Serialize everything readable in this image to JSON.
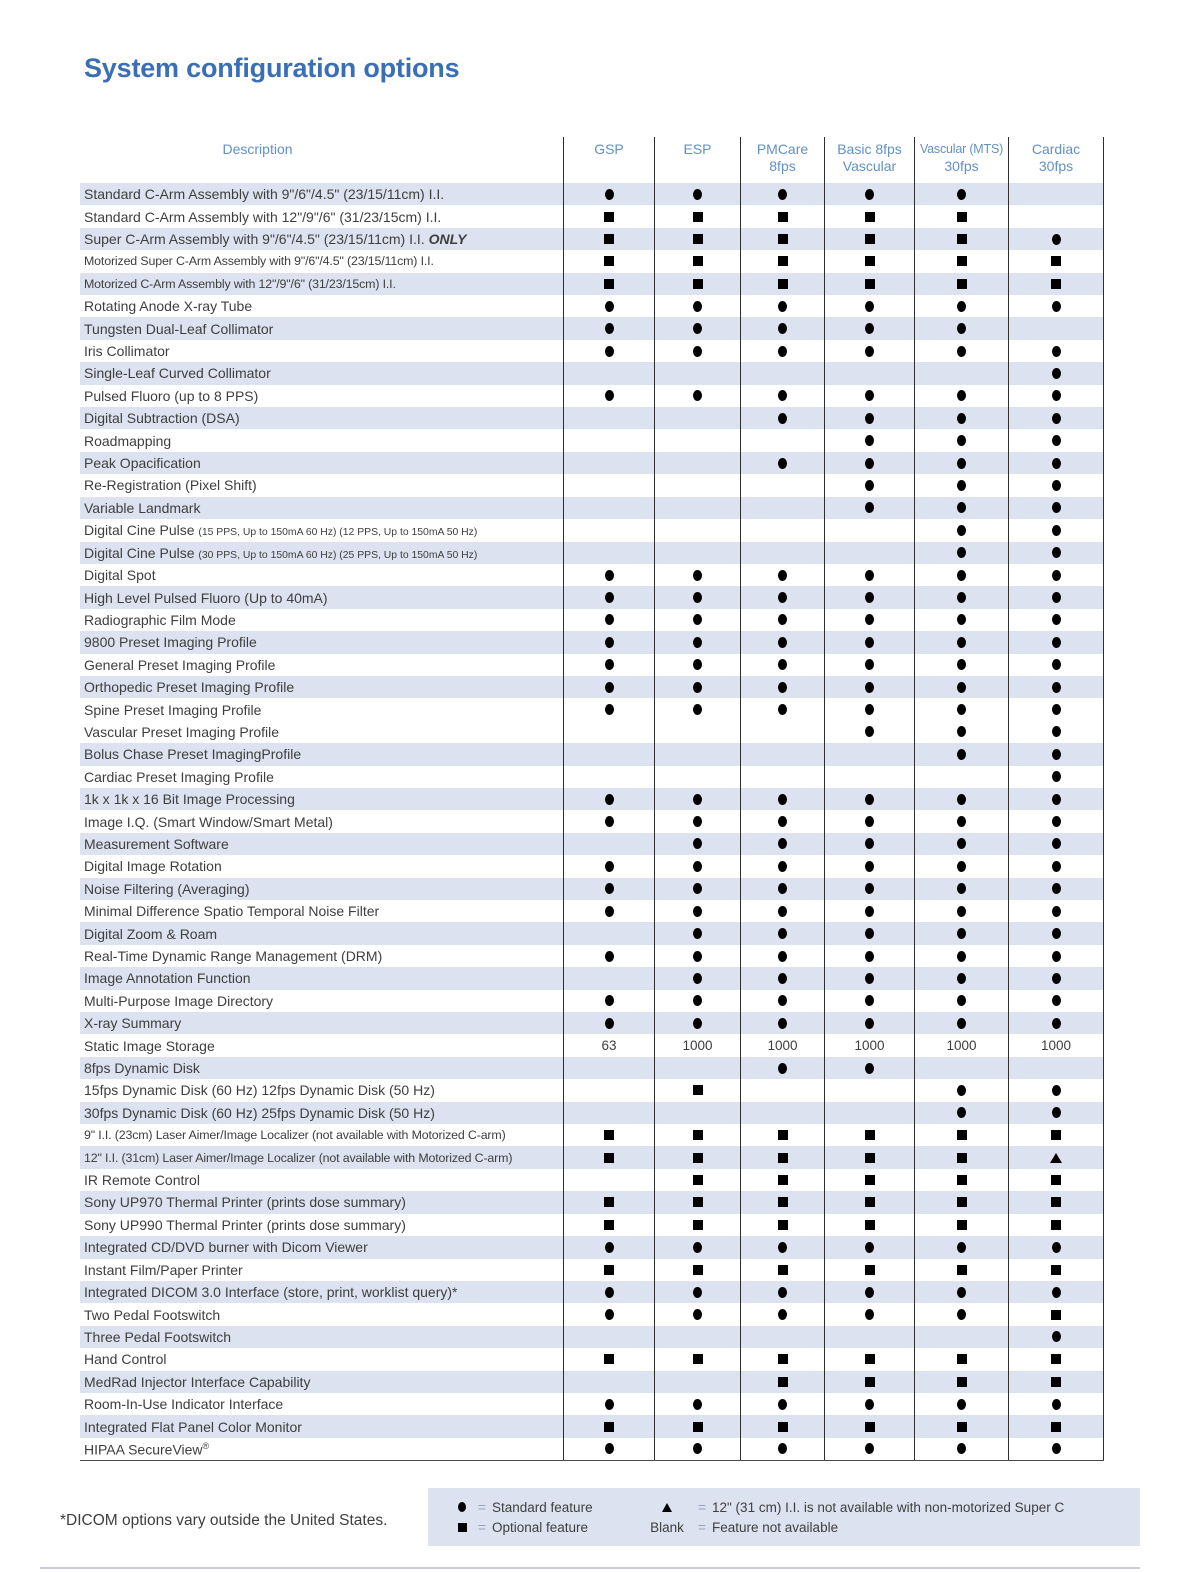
{
  "colors": {
    "accent": "#3a6fb6",
    "headerblue": "#6290c7",
    "textdark": "#3e3e3e",
    "stripe": "#dde2f0",
    "linedark": "#2e2e2e",
    "eqgray": "#97a2ba",
    "rule": "#c9cdd9"
  },
  "page": {
    "title": "System configuration options",
    "footnote": "*DICOM options vary outside the United States."
  },
  "table": {
    "description_header": "Description",
    "columns": [
      {
        "lines": [
          "GSP"
        ]
      },
      {
        "lines": [
          "ESP"
        ]
      },
      {
        "lines": [
          "PMCare",
          "8fps"
        ]
      },
      {
        "lines": [
          "Basic 8fps",
          "Vascular"
        ]
      },
      {
        "lines": [
          "Vascular (MTS)",
          "30fps"
        ],
        "small": true
      },
      {
        "lines": [
          "Cardiac",
          "30fps"
        ]
      }
    ],
    "rows": [
      {
        "desc": "Standard C-Arm Assembly with 9\"/6\"/4.5\" (23/15/11cm) I.I.",
        "cells": [
          "dot",
          "dot",
          "dot",
          "dot",
          "dot",
          ""
        ]
      },
      {
        "desc": "Standard C-Arm Assembly with 12\"/9\"/6\" (31/23/15cm) I.I.",
        "cells": [
          "square",
          "square",
          "square",
          "square",
          "square",
          ""
        ]
      },
      {
        "desc": "Super C-Arm Assembly with 9\"/6\"/4.5\" (23/15/11cm) I.I. ",
        "suffix_bold_italic": "ONLY",
        "cells": [
          "square",
          "square",
          "square",
          "square",
          "square",
          "dot"
        ]
      },
      {
        "desc": "Motorized Super C-Arm Assembly with 9\"/6\"/4.5\" (23/15/11cm) I.I.",
        "condensed": true,
        "cells": [
          "square",
          "square",
          "square",
          "square",
          "square",
          "square"
        ]
      },
      {
        "desc": "Motorized C-Arm Assembly with 12\"/9\"/6\" (31/23/15cm) I.I.",
        "condensed": true,
        "cells": [
          "square",
          "square",
          "square",
          "square",
          "square",
          "square"
        ]
      },
      {
        "desc": "Rotating Anode X-ray Tube",
        "cells": [
          "dot",
          "dot",
          "dot",
          "dot",
          "dot",
          "dot"
        ]
      },
      {
        "desc": "Tungsten Dual-Leaf Collimator",
        "cells": [
          "dot",
          "dot",
          "dot",
          "dot",
          "dot",
          ""
        ]
      },
      {
        "desc": "Iris Collimator",
        "cells": [
          "dot",
          "dot",
          "dot",
          "dot",
          "dot",
          "dot"
        ]
      },
      {
        "desc": "Single-Leaf Curved Collimator",
        "cells": [
          "",
          "",
          "",
          "",
          "",
          "dot"
        ]
      },
      {
        "desc": "Pulsed Fluoro (up to 8 PPS)",
        "cells": [
          "dot",
          "dot",
          "dot",
          "dot",
          "dot",
          "dot"
        ]
      },
      {
        "desc": "Digital Subtraction (DSA)",
        "cells": [
          "",
          "",
          "dot",
          "dot",
          "dot",
          "dot"
        ]
      },
      {
        "desc": "Roadmapping",
        "cells": [
          "",
          "",
          "",
          "dot",
          "dot",
          "dot"
        ]
      },
      {
        "desc": "Peak Opacification",
        "cells": [
          "",
          "",
          "dot",
          "dot",
          "dot",
          "dot"
        ]
      },
      {
        "desc": "Re-Registration (Pixel Shift)",
        "cells": [
          "",
          "",
          "",
          "dot",
          "dot",
          "dot"
        ]
      },
      {
        "desc": "Variable Landmark",
        "cells": [
          "",
          "",
          "",
          "dot",
          "dot",
          "dot"
        ]
      },
      {
        "desc": "Digital Cine Pulse ",
        "suffix_small": "(15 PPS, Up to 150mA 60 Hz) (12 PPS, Up to 150mA 50 Hz)",
        "cells": [
          "",
          "",
          "",
          "",
          "dot",
          "dot"
        ]
      },
      {
        "desc": "Digital Cine Pulse ",
        "suffix_small": "(30 PPS, Up to 150mA 60 Hz) (25 PPS, Up to 150mA 50 Hz)",
        "cells": [
          "",
          "",
          "",
          "",
          "dot",
          "dot"
        ]
      },
      {
        "desc": "Digital Spot",
        "cells": [
          "dot",
          "dot",
          "dot",
          "dot",
          "dot",
          "dot"
        ]
      },
      {
        "desc": "High Level Pulsed Fluoro (Up to 40mA)",
        "cells": [
          "dot",
          "dot",
          "dot",
          "dot",
          "dot",
          "dot"
        ]
      },
      {
        "desc": "Radiographic Film Mode",
        "cells": [
          "dot",
          "dot",
          "dot",
          "dot",
          "dot",
          "dot"
        ]
      },
      {
        "desc": "9800 Preset Imaging Profile",
        "cells": [
          "dot",
          "dot",
          "dot",
          "dot",
          "dot",
          "dot"
        ]
      },
      {
        "desc": "General Preset Imaging Profile",
        "cells": [
          "dot",
          "dot",
          "dot",
          "dot",
          "dot",
          "dot"
        ]
      },
      {
        "desc": "Orthopedic Preset Imaging Profile",
        "cells": [
          "dot",
          "dot",
          "dot",
          "dot",
          "dot",
          "dot"
        ]
      },
      {
        "desc": "Spine Preset Imaging Profile",
        "cells": [
          "dot",
          "dot",
          "dot",
          "dot",
          "dot",
          "dot"
        ]
      },
      {
        "desc": "Vascular Preset Imaging Profile",
        "cells": [
          "",
          "",
          "",
          "dot",
          "dot",
          "dot"
        ]
      },
      {
        "desc": "Bolus Chase Preset ImagingProfile",
        "cells": [
          "",
          "",
          "",
          "",
          "dot",
          "dot"
        ]
      },
      {
        "desc": "Cardiac Preset Imaging Profile",
        "cells": [
          "",
          "",
          "",
          "",
          "",
          "dot"
        ]
      },
      {
        "desc": "1k x 1k x 16 Bit  Image Processing",
        "cells": [
          "dot",
          "dot",
          "dot",
          "dot",
          "dot",
          "dot"
        ]
      },
      {
        "desc": "Image I.Q. (Smart Window/Smart Metal)",
        "cells": [
          "dot",
          "dot",
          "dot",
          "dot",
          "dot",
          "dot"
        ]
      },
      {
        "desc": "Measurement Software",
        "cells": [
          "",
          "dot",
          "dot",
          "dot",
          "dot",
          "dot"
        ]
      },
      {
        "desc": "Digital Image Rotation",
        "cells": [
          "dot",
          "dot",
          "dot",
          "dot",
          "dot",
          "dot"
        ]
      },
      {
        "desc": "Noise Filtering (Averaging)",
        "cells": [
          "dot",
          "dot",
          "dot",
          "dot",
          "dot",
          "dot"
        ]
      },
      {
        "desc": "Minimal Difference Spatio Temporal Noise Filter",
        "cells": [
          "dot",
          "dot",
          "dot",
          "dot",
          "dot",
          "dot"
        ]
      },
      {
        "desc": "Digital Zoom & Roam",
        "cells": [
          "",
          "dot",
          "dot",
          "dot",
          "dot",
          "dot"
        ]
      },
      {
        "desc": "Real-Time Dynamic Range Management (DRM)",
        "cells": [
          "dot",
          "dot",
          "dot",
          "dot",
          "dot",
          "dot"
        ]
      },
      {
        "desc": "Image Annotation Function",
        "cells": [
          "",
          "dot",
          "dot",
          "dot",
          "dot",
          "dot"
        ]
      },
      {
        "desc": "Multi-Purpose Image Directory",
        "cells": [
          "dot",
          "dot",
          "dot",
          "dot",
          "dot",
          "dot"
        ]
      },
      {
        "desc": "X-ray Summary",
        "cells": [
          "dot",
          "dot",
          "dot",
          "dot",
          "dot",
          "dot"
        ]
      },
      {
        "desc": "Static Image Storage",
        "cells": [
          "63",
          "1000",
          "1000",
          "1000",
          "1000",
          "1000"
        ]
      },
      {
        "desc": "8fps Dynamic Disk",
        "cells": [
          "",
          "",
          "dot",
          "dot",
          "",
          ""
        ]
      },
      {
        "desc": "15fps Dynamic Disk (60 Hz) 12fps Dynamic Disk (50 Hz)",
        "cells": [
          "",
          "square",
          "",
          "",
          "dot",
          "dot"
        ]
      },
      {
        "desc": "30fps Dynamic Disk (60 Hz) 25fps Dynamic Disk (50 Hz)",
        "cells": [
          "",
          "",
          "",
          "",
          "dot",
          "dot"
        ]
      },
      {
        "desc": "9\" I.I. (23cm) Laser Aimer/Image Localizer (not available with Motorized C-arm)",
        "condensed": true,
        "cells": [
          "square",
          "square",
          "square",
          "square",
          "square",
          "square"
        ]
      },
      {
        "desc": "12\" I.I. (31cm) Laser Aimer/Image Localizer (not available with Motorized C-arm)",
        "condensed": true,
        "cells": [
          "square",
          "square",
          "square",
          "square",
          "square",
          "triangle"
        ]
      },
      {
        "desc": "IR Remote Control",
        "cells": [
          "",
          "square",
          "square",
          "square",
          "square",
          "square"
        ]
      },
      {
        "desc": "Sony UP970 Thermal Printer (prints dose summary)",
        "cells": [
          "square",
          "square",
          "square",
          "square",
          "square",
          "square"
        ]
      },
      {
        "desc": "Sony UP990 Thermal Printer (prints dose summary)",
        "cells": [
          "square",
          "square",
          "square",
          "square",
          "square",
          "square"
        ]
      },
      {
        "desc": "Integrated CD/DVD burner with Dicom Viewer",
        "cells": [
          "dot",
          "dot",
          "dot",
          "dot",
          "dot",
          "dot"
        ]
      },
      {
        "desc": "Instant Film/Paper Printer",
        "cells": [
          "square",
          "square",
          "square",
          "square",
          "square",
          "square"
        ]
      },
      {
        "desc": "Integrated DICOM 3.0 Interface (store, print, worklist query)*",
        "cells": [
          "dot",
          "dot",
          "dot",
          "dot",
          "dot",
          "dot"
        ]
      },
      {
        "desc": "Two Pedal Footswitch",
        "cells": [
          "dot",
          "dot",
          "dot",
          "dot",
          "dot",
          "square"
        ]
      },
      {
        "desc": "Three Pedal Footswitch",
        "cells": [
          "",
          "",
          "",
          "",
          "",
          "dot"
        ]
      },
      {
        "desc": "Hand Control",
        "cells": [
          "square",
          "square",
          "square",
          "square",
          "square",
          "square"
        ]
      },
      {
        "desc": "MedRad Injector Interface Capability",
        "cells": [
          "",
          "",
          "square",
          "square",
          "square",
          "square"
        ]
      },
      {
        "desc": "Room-In-Use Indicator Interface",
        "cells": [
          "dot",
          "dot",
          "dot",
          "dot",
          "dot",
          "dot"
        ]
      },
      {
        "desc": "Integrated Flat Panel Color Monitor",
        "cells": [
          "square",
          "square",
          "square",
          "square",
          "square",
          "square"
        ]
      },
      {
        "desc": "HIPAA SecureView",
        "sup": "®",
        "cells": [
          "dot",
          "dot",
          "dot",
          "dot",
          "dot",
          "dot"
        ]
      }
    ]
  },
  "legend": {
    "equals": "=",
    "items": [
      {
        "symbol": "dot",
        "label": "Standard feature"
      },
      {
        "symbol": "square",
        "label": "Optional feature"
      },
      {
        "symbol": "triangle",
        "label": "12\" (31 cm) I.I. is not available with non-motorized Super C"
      },
      {
        "symbol": "blank",
        "symbol_text": "Blank",
        "label": "Feature not available"
      }
    ]
  }
}
